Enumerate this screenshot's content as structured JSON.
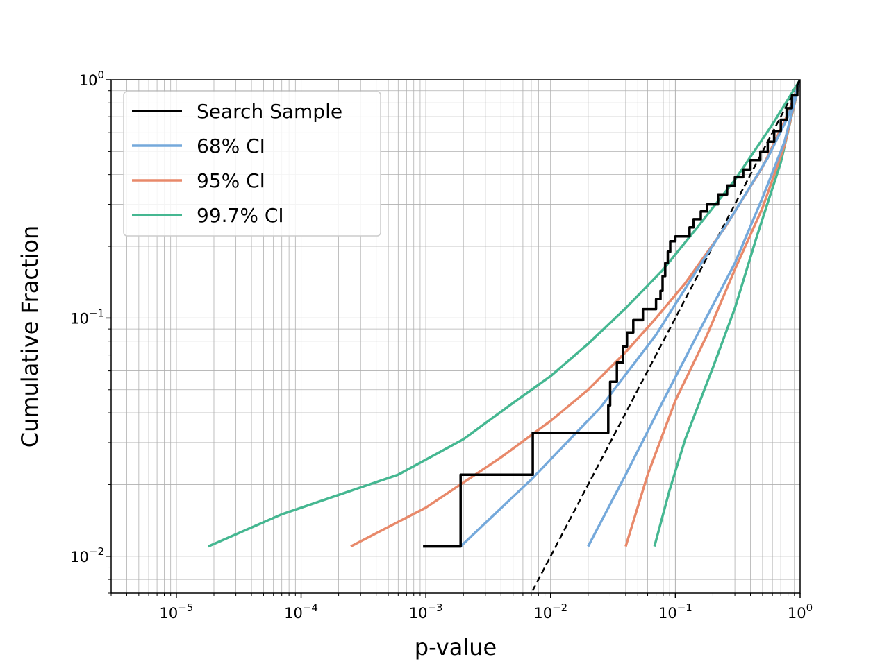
{
  "chart_data": {
    "type": "line",
    "xlabel": "p-value",
    "ylabel": "Cumulative Fraction",
    "xscale": "log",
    "yscale": "log",
    "xlim": [
      3e-06,
      1
    ],
    "ylim": [
      0.007,
      1
    ],
    "grid": "both (major and minor)",
    "legend_placement": "top-left",
    "x_ticks": [
      {
        "value": 1e-05,
        "base": "10",
        "exp": "−5"
      },
      {
        "value": 0.0001,
        "base": "10",
        "exp": "−4"
      },
      {
        "value": 0.001,
        "base": "10",
        "exp": "−3"
      },
      {
        "value": 0.01,
        "base": "10",
        "exp": "−2"
      },
      {
        "value": 0.1,
        "base": "10",
        "exp": "−1"
      },
      {
        "value": 1,
        "base": "10",
        "exp": "0"
      }
    ],
    "y_ticks": [
      {
        "value": 0.01,
        "base": "10",
        "exp": "−2"
      },
      {
        "value": 0.1,
        "base": "10",
        "exp": "−1"
      },
      {
        "value": 1,
        "base": "10",
        "exp": "0"
      }
    ],
    "reference_line": {
      "style": "dashed",
      "color": "#000000",
      "description": "y = x",
      "x": [
        0.0066,
        1
      ],
      "y": [
        0.0066,
        1
      ]
    },
    "series": [
      {
        "name": "Search Sample",
        "color": "#000000",
        "step": true,
        "x": [
          0.00095,
          0.0019,
          0.0019,
          0.0072,
          0.0072,
          0.029,
          0.029,
          0.03,
          0.03,
          0.034,
          0.034,
          0.038,
          0.038,
          0.041,
          0.041,
          0.046,
          0.046,
          0.055,
          0.055,
          0.07,
          0.07,
          0.076,
          0.076,
          0.079,
          0.079,
          0.083,
          0.083,
          0.087,
          0.087,
          0.091,
          0.091,
          0.1,
          0.1,
          0.13,
          0.13,
          0.14,
          0.14,
          0.16,
          0.16,
          0.18,
          0.18,
          0.22,
          0.22,
          0.26,
          0.26,
          0.3,
          0.3,
          0.35,
          0.35,
          0.4,
          0.4,
          0.48,
          0.48,
          0.55,
          0.55,
          0.62,
          0.62,
          0.7,
          0.7,
          0.78,
          0.78,
          0.86,
          0.86,
          0.95,
          0.95,
          1.0
        ],
        "y": [
          0.011,
          0.011,
          0.022,
          0.022,
          0.033,
          0.033,
          0.043,
          0.043,
          0.054,
          0.054,
          0.065,
          0.065,
          0.076,
          0.076,
          0.087,
          0.087,
          0.098,
          0.098,
          0.109,
          0.109,
          0.12,
          0.12,
          0.13,
          0.13,
          0.15,
          0.15,
          0.17,
          0.17,
          0.19,
          0.19,
          0.21,
          0.21,
          0.22,
          0.22,
          0.24,
          0.24,
          0.26,
          0.26,
          0.28,
          0.28,
          0.3,
          0.3,
          0.33,
          0.33,
          0.36,
          0.36,
          0.39,
          0.39,
          0.42,
          0.42,
          0.46,
          0.46,
          0.5,
          0.5,
          0.55,
          0.55,
          0.61,
          0.61,
          0.68,
          0.68,
          0.76,
          0.76,
          0.86,
          0.86,
          0.95,
          1.0
        ]
      },
      {
        "name": "68% CI",
        "color": "#75a9db",
        "band": true,
        "upper": {
          "x": [
            0.0019,
            0.007,
            0.025,
            0.07,
            0.15,
            0.3,
            0.55,
            0.8,
            1.0
          ],
          "y": [
            0.011,
            0.021,
            0.042,
            0.085,
            0.16,
            0.28,
            0.47,
            0.7,
            1.0
          ]
        },
        "lower": {
          "x": [
            0.02,
            0.04,
            0.08,
            0.15,
            0.3,
            0.5,
            0.75,
            1.0
          ],
          "y": [
            0.011,
            0.022,
            0.045,
            0.085,
            0.17,
            0.32,
            0.55,
            1.0
          ]
        }
      },
      {
        "name": "95% CI",
        "color": "#e8896a",
        "band": true,
        "upper": {
          "x": [
            0.00025,
            0.001,
            0.004,
            0.01,
            0.02,
            0.04,
            0.07,
            0.12,
            0.25,
            0.5,
            0.8,
            1.0
          ],
          "y": [
            0.011,
            0.016,
            0.026,
            0.037,
            0.05,
            0.072,
            0.1,
            0.14,
            0.24,
            0.43,
            0.72,
            1.0
          ]
        },
        "lower": {
          "x": [
            0.04,
            0.06,
            0.1,
            0.18,
            0.3,
            0.5,
            0.75,
            1.0
          ],
          "y": [
            0.011,
            0.022,
            0.045,
            0.085,
            0.16,
            0.29,
            0.53,
            1.0
          ]
        }
      },
      {
        "name": "99.7% CI",
        "color": "#45b791",
        "band": true,
        "upper": {
          "x": [
            1.8e-05,
            7e-05,
            0.0006,
            0.002,
            0.005,
            0.01,
            0.02,
            0.04,
            0.08,
            0.15,
            0.3,
            0.6,
            1.0
          ],
          "y": [
            0.011,
            0.015,
            0.022,
            0.031,
            0.044,
            0.057,
            0.078,
            0.11,
            0.16,
            0.24,
            0.38,
            0.65,
            1.0
          ]
        },
        "lower": {
          "x": [
            0.068,
            0.09,
            0.12,
            0.2,
            0.3,
            0.45,
            0.7,
            1.0
          ],
          "y": [
            0.011,
            0.019,
            0.031,
            0.062,
            0.11,
            0.22,
            0.45,
            1.0
          ]
        }
      }
    ]
  }
}
